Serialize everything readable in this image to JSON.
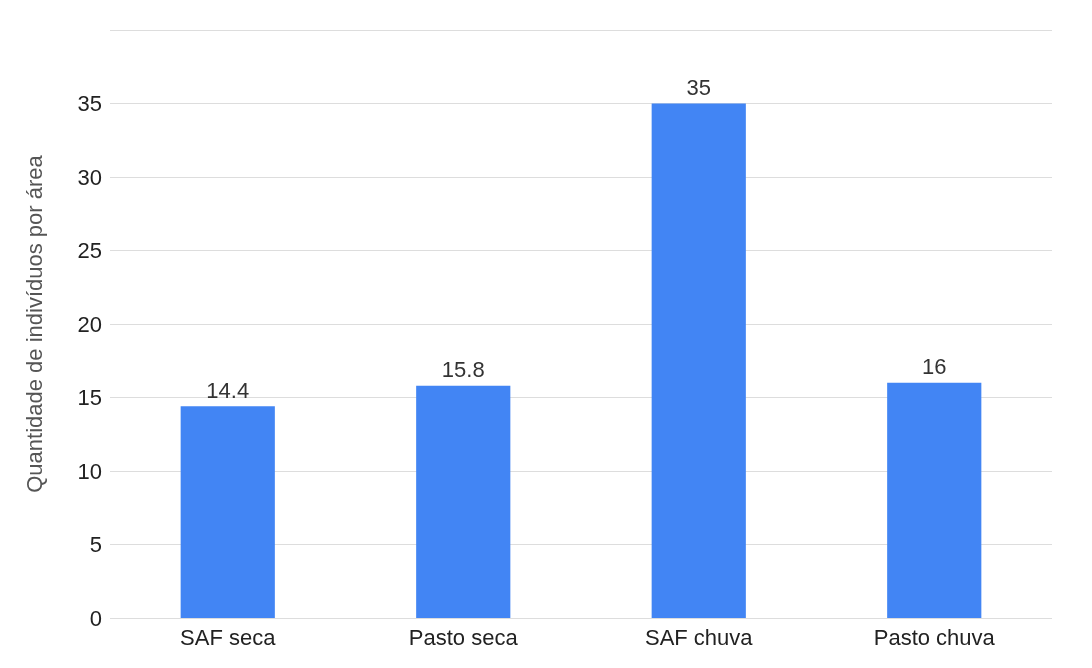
{
  "chart_data": {
    "type": "bar",
    "ylabel": "Quantidade de indivíduos por área",
    "categories": [
      "SAF seca",
      "Pasto seca",
      "SAF chuva",
      "Pasto chuva"
    ],
    "values": [
      14.4,
      15.8,
      35,
      16
    ],
    "color": "#4285f4",
    "ylim": [
      0,
      40
    ],
    "yticks": [
      0,
      5,
      10,
      15,
      20,
      25,
      30,
      35,
      {
        "value": 40,
        "label": null
      }
    ],
    "grid": "y",
    "data_labels": true
  }
}
